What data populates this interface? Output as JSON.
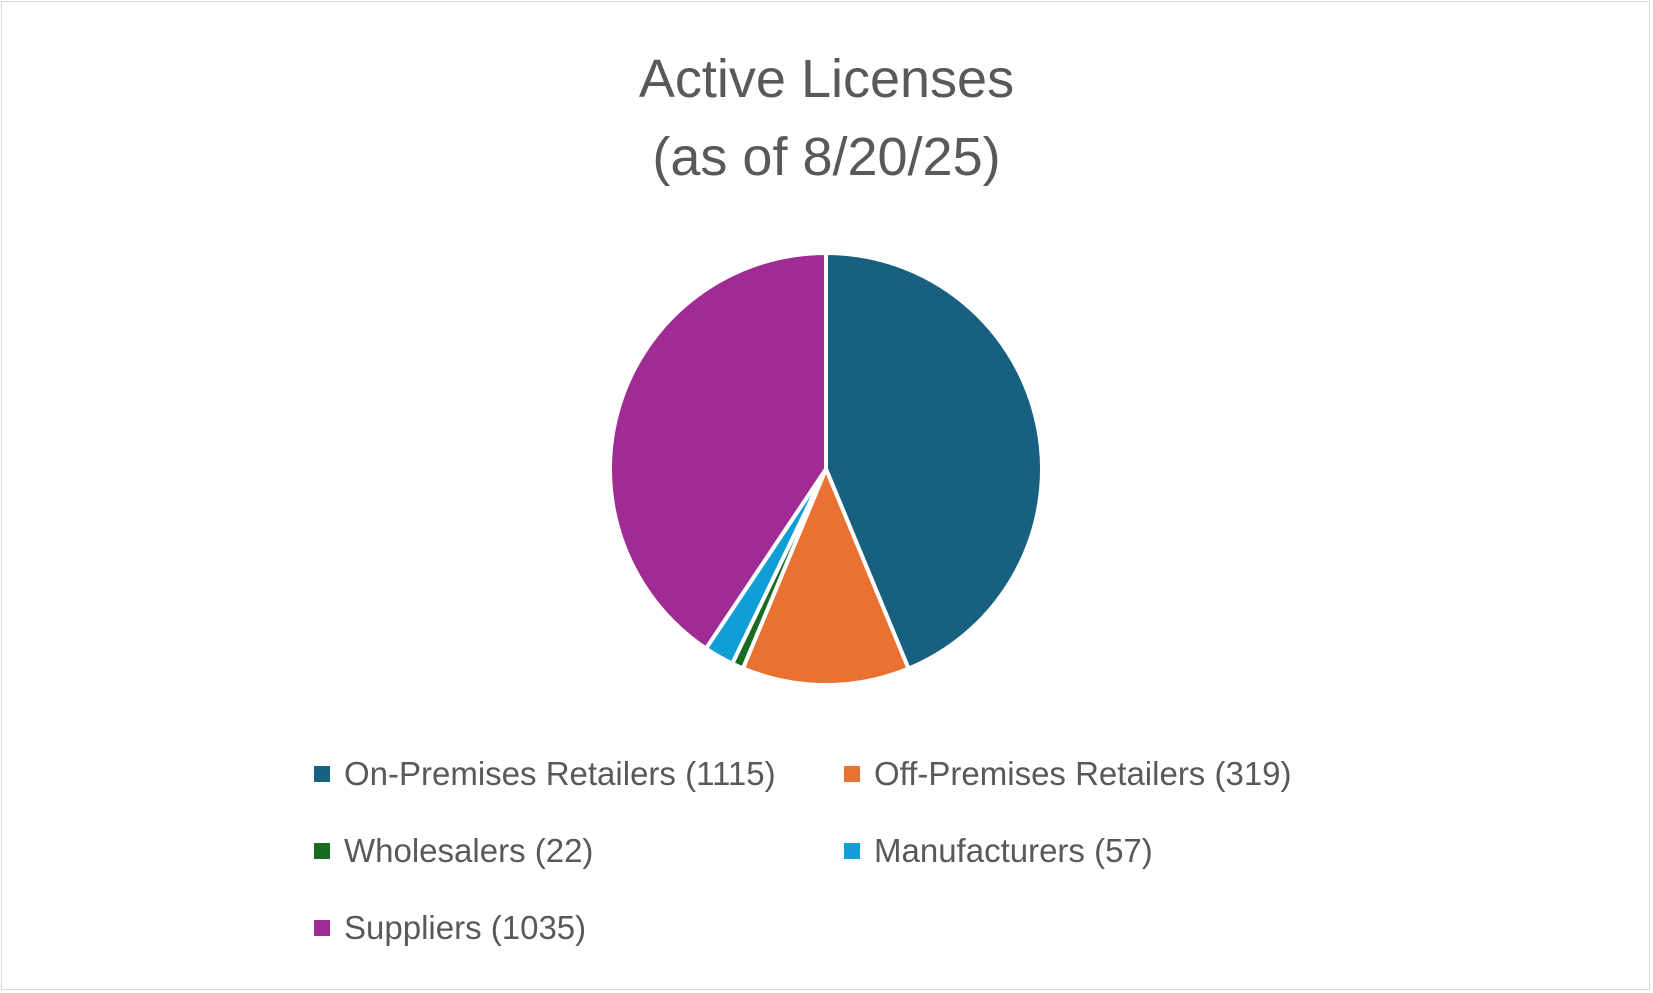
{
  "chart_data": {
    "type": "pie",
    "title": "Active Licenses",
    "subtitle": "(as of 8/20/25)",
    "legend_position": "bottom",
    "slices": [
      {
        "label": "On-Premises Retailers (1115)",
        "value": 1115,
        "color": "#17607f"
      },
      {
        "label": "Off-Premises Retailers (319)",
        "value": 319,
        "color": "#e97132"
      },
      {
        "label": "Wholesalers (22)",
        "value": 22,
        "color": "#196b24"
      },
      {
        "label": "Manufacturers (57)",
        "value": 57,
        "color": "#0f9ed5"
      },
      {
        "label": "Suppliers (1035)",
        "value": 1035,
        "color": "#a02b93"
      }
    ]
  }
}
